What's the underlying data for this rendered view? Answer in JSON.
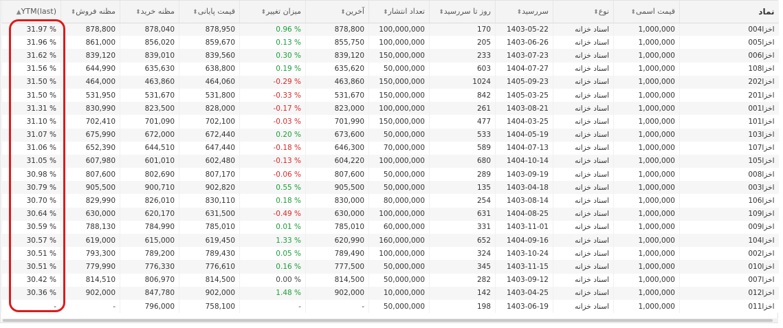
{
  "columns": [
    {
      "key": "symbol",
      "label": "نماد"
    },
    {
      "key": "face",
      "label": "قیمت اسمی"
    },
    {
      "key": "type",
      "label": "نوع"
    },
    {
      "key": "maturity",
      "label": "سررسید"
    },
    {
      "key": "days",
      "label": "روز تا سررسید"
    },
    {
      "key": "issued",
      "label": "تعداد انتشار"
    },
    {
      "key": "last",
      "label": "آخرین"
    },
    {
      "key": "change",
      "label": "میزان تغییر"
    },
    {
      "key": "close",
      "label": "قیمت پایانی"
    },
    {
      "key": "bid",
      "label": "مظنه خرید"
    },
    {
      "key": "ask",
      "label": "مظنه فروش"
    },
    {
      "key": "ytm",
      "label": "YTM(last)"
    }
  ],
  "rows": [
    {
      "symbol": "اخزا004",
      "face": "1,000,000",
      "type": "اسناد خزانه",
      "maturity": "1403-05-22",
      "days": "170",
      "issued": "100,000,000",
      "last": "878,800",
      "change": "0.96 %",
      "dir": "pos",
      "close": "878,950",
      "bid": "878,040",
      "ask": "878,800",
      "ytm": "31.97 %"
    },
    {
      "symbol": "اخزا005",
      "face": "1,000,000",
      "type": "اسناد خزانه",
      "maturity": "1403-06-26",
      "days": "205",
      "issued": "100,000,000",
      "last": "855,750",
      "change": "0.13 %",
      "dir": "pos",
      "close": "859,670",
      "bid": "856,020",
      "ask": "861,000",
      "ytm": "31.96 %"
    },
    {
      "symbol": "اخزا006",
      "face": "1,000,000",
      "type": "اسناد خزانه",
      "maturity": "1403-07-23",
      "days": "233",
      "issued": "150,000,000",
      "last": "839,120",
      "change": "0.30 %",
      "dir": "pos",
      "close": "839,560",
      "bid": "839,010",
      "ask": "839,120",
      "ytm": "31.62 %"
    },
    {
      "symbol": "اخزا108",
      "face": "1,000,000",
      "type": "اسناد خزانه",
      "maturity": "1404-07-27",
      "days": "603",
      "issued": "50,000,000",
      "last": "635,620",
      "change": "0.19 %",
      "dir": "pos",
      "close": "638,800",
      "bid": "635,630",
      "ask": "644,990",
      "ytm": "31.56 %"
    },
    {
      "symbol": "اخزا202",
      "face": "1,000,000",
      "type": "اسناد خزانه",
      "maturity": "1405-09-23",
      "days": "1024",
      "issued": "150,000,000",
      "last": "463,860",
      "change": "-0.29 %",
      "dir": "neg",
      "close": "464,060",
      "bid": "463,860",
      "ask": "464,000",
      "ytm": "31.50 %"
    },
    {
      "symbol": "اخزا201",
      "face": "1,000,000",
      "type": "اسناد خزانه",
      "maturity": "1405-03-25",
      "days": "842",
      "issued": "150,000,000",
      "last": "531,670",
      "change": "-0.33 %",
      "dir": "neg",
      "close": "531,800",
      "bid": "531,670",
      "ask": "531,950",
      "ytm": "31.50 %"
    },
    {
      "symbol": "اخزا001",
      "face": "1,000,000",
      "type": "اسناد خزانه",
      "maturity": "1403-08-21",
      "days": "261",
      "issued": "100,000,000",
      "last": "823,000",
      "change": "-0.17 %",
      "dir": "neg",
      "close": "828,000",
      "bid": "823,500",
      "ask": "830,990",
      "ytm": "31.31 %"
    },
    {
      "symbol": "اخزا101",
      "face": "1,000,000",
      "type": "اسناد خزانه",
      "maturity": "1404-03-25",
      "days": "477",
      "issued": "150,000,000",
      "last": "701,990",
      "change": "-0.03 %",
      "dir": "neg",
      "close": "702,100",
      "bid": "701,090",
      "ask": "702,410",
      "ytm": "31.10 %"
    },
    {
      "symbol": "اخزا103",
      "face": "1,000,000",
      "type": "اسناد خزانه",
      "maturity": "1404-05-19",
      "days": "533",
      "issued": "50,000,000",
      "last": "673,600",
      "change": "0.20 %",
      "dir": "pos",
      "close": "672,440",
      "bid": "672,000",
      "ask": "675,990",
      "ytm": "31.07 %"
    },
    {
      "symbol": "اخزا107",
      "face": "1,000,000",
      "type": "اسناد خزانه",
      "maturity": "1404-07-13",
      "days": "589",
      "issued": "70,000,000",
      "last": "646,300",
      "change": "-0.18 %",
      "dir": "neg",
      "close": "647,440",
      "bid": "644,510",
      "ask": "652,390",
      "ytm": "31.06 %"
    },
    {
      "symbol": "اخزا105",
      "face": "1,000,000",
      "type": "اسناد خزانه",
      "maturity": "1404-10-14",
      "days": "680",
      "issued": "100,000,000",
      "last": "604,220",
      "change": "-0.13 %",
      "dir": "neg",
      "close": "602,480",
      "bid": "601,010",
      "ask": "607,980",
      "ytm": "31.05 %"
    },
    {
      "symbol": "اخزا008",
      "face": "1,000,000",
      "type": "اسناد خزانه",
      "maturity": "1403-09-19",
      "days": "289",
      "issued": "50,000,000",
      "last": "807,600",
      "change": "-0.06 %",
      "dir": "neg",
      "close": "807,170",
      "bid": "802,690",
      "ask": "807,600",
      "ytm": "30.98 %"
    },
    {
      "symbol": "اخزا003",
      "face": "1,000,000",
      "type": "اسناد خزانه",
      "maturity": "1403-04-18",
      "days": "135",
      "issued": "50,000,000",
      "last": "905,500",
      "change": "0.55 %",
      "dir": "pos",
      "close": "902,820",
      "bid": "900,710",
      "ask": "905,500",
      "ytm": "30.79 %"
    },
    {
      "symbol": "اخزا106",
      "face": "1,000,000",
      "type": "اسناد خزانه",
      "maturity": "1403-08-14",
      "days": "254",
      "issued": "80,000,000",
      "last": "830,000",
      "change": "0.18 %",
      "dir": "pos",
      "close": "830,110",
      "bid": "826,010",
      "ask": "829,990",
      "ytm": "30.70 %"
    },
    {
      "symbol": "اخزا109",
      "face": "1,000,000",
      "type": "اسناد خزانه",
      "maturity": "1404-08-25",
      "days": "631",
      "issued": "100,000,000",
      "last": "630,000",
      "change": "-0.49 %",
      "dir": "neg",
      "close": "631,500",
      "bid": "620,170",
      "ask": "630,000",
      "ytm": "30.64 %"
    },
    {
      "symbol": "اخزا009",
      "face": "1,000,000",
      "type": "اسناد خزانه",
      "maturity": "1403-11-01",
      "days": "331",
      "issued": "60,000,000",
      "last": "785,010",
      "change": "0.01 %",
      "dir": "pos",
      "close": "785,010",
      "bid": "784,990",
      "ask": "788,130",
      "ytm": "30.59 %"
    },
    {
      "symbol": "اخزا104",
      "face": "1,000,000",
      "type": "اسناد خزانه",
      "maturity": "1404-09-16",
      "days": "652",
      "issued": "160,000,000",
      "last": "620,990",
      "change": "1.33 %",
      "dir": "pos",
      "close": "619,450",
      "bid": "615,000",
      "ask": "619,000",
      "ytm": "30.57 %"
    },
    {
      "symbol": "اخزا002",
      "face": "1,000,000",
      "type": "اسناد خزانه",
      "maturity": "1403-10-24",
      "days": "324",
      "issued": "100,000,000",
      "last": "789,490",
      "change": "0.05 %",
      "dir": "pos",
      "close": "789,430",
      "bid": "789,200",
      "ask": "793,300",
      "ytm": "30.51 %"
    },
    {
      "symbol": "اخزا010",
      "face": "1,000,000",
      "type": "اسناد خزانه",
      "maturity": "1403-11-15",
      "days": "345",
      "issued": "50,000,000",
      "last": "777,500",
      "change": "0.16 %",
      "dir": "pos",
      "close": "776,610",
      "bid": "776,330",
      "ask": "779,990",
      "ytm": "30.51 %"
    },
    {
      "symbol": "اخزا007",
      "face": "1,000,000",
      "type": "اسناد خزانه",
      "maturity": "1403-09-12",
      "days": "282",
      "issued": "50,000,000",
      "last": "814,500",
      "change": "0.00 %",
      "dir": "zero",
      "close": "814,500",
      "bid": "806,970",
      "ask": "814,510",
      "ytm": "30.42 %"
    },
    {
      "symbol": "اخزا012",
      "face": "1,000,000",
      "type": "اسناد خزانه",
      "maturity": "1403-04-25",
      "days": "142",
      "issued": "10,000,000",
      "last": "902,000",
      "change": "1.48 %",
      "dir": "pos",
      "close": "902,000",
      "bid": "847,780",
      "ask": "902,000",
      "ytm": "30.36 %"
    },
    {
      "symbol": "اخزا011",
      "face": "1,000,000",
      "type": "اسناد خزانه",
      "maturity": "1403-06-19",
      "days": "198",
      "issued": "50,000,000",
      "last": "-",
      "change": "-",
      "dir": "zero",
      "close": "758,100",
      "bid": "796,000",
      "ask": "-",
      "ytm": "-"
    }
  ]
}
